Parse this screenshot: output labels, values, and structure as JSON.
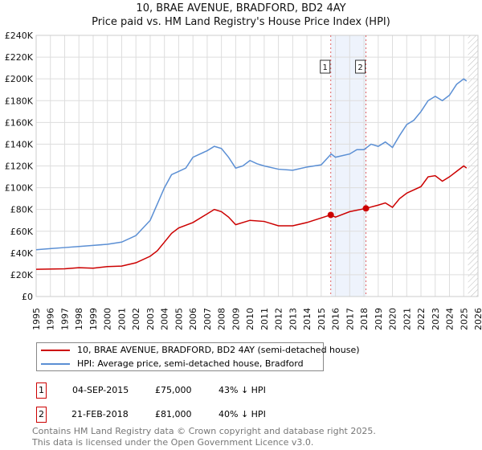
{
  "chart_data": {
    "type": "line",
    "title": "10, BRAE AVENUE, BRADFORD, BD2 4AY",
    "subtitle": "Price paid vs. HM Land Registry's House Price Index (HPI)",
    "xlim": [
      1995,
      2026
    ],
    "ylim": [
      0,
      240000
    ],
    "x_ticks": [
      "1995",
      "1996",
      "1997",
      "1998",
      "1999",
      "2000",
      "2001",
      "2002",
      "2003",
      "2004",
      "2005",
      "2006",
      "2007",
      "2008",
      "2009",
      "2010",
      "2011",
      "2012",
      "2013",
      "2014",
      "2015",
      "2016",
      "2017",
      "2018",
      "2019",
      "2020",
      "2021",
      "2022",
      "2023",
      "2024",
      "2025",
      "2026"
    ],
    "y_ticks": [
      {
        "v": 0,
        "l": "£0"
      },
      {
        "v": 20000,
        "l": "£20K"
      },
      {
        "v": 40000,
        "l": "£40K"
      },
      {
        "v": 60000,
        "l": "£60K"
      },
      {
        "v": 80000,
        "l": "£80K"
      },
      {
        "v": 100000,
        "l": "£100K"
      },
      {
        "v": 120000,
        "l": "£120K"
      },
      {
        "v": 140000,
        "l": "£140K"
      },
      {
        "v": 160000,
        "l": "£160K"
      },
      {
        "v": 180000,
        "l": "£180K"
      },
      {
        "v": 200000,
        "l": "£200K"
      },
      {
        "v": 220000,
        "l": "£220K"
      },
      {
        "v": 240000,
        "l": "£240K"
      }
    ],
    "grid": true,
    "series": [
      {
        "name": "10, BRAE AVENUE, BRADFORD, BD2 4AY (semi-detached house)",
        "color": "#cc0000",
        "points": [
          [
            1995,
            25000
          ],
          [
            1997,
            25500
          ],
          [
            1998,
            26500
          ],
          [
            1999,
            26000
          ],
          [
            2000,
            27500
          ],
          [
            2001,
            28000
          ],
          [
            2002,
            31000
          ],
          [
            2003,
            37000
          ],
          [
            2003.5,
            42000
          ],
          [
            2004,
            50000
          ],
          [
            2004.5,
            58000
          ],
          [
            2005,
            63000
          ],
          [
            2006,
            68000
          ],
          [
            2007,
            76000
          ],
          [
            2007.5,
            80000
          ],
          [
            2008,
            78000
          ],
          [
            2008.5,
            73000
          ],
          [
            2009,
            66000
          ],
          [
            2010,
            70000
          ],
          [
            2011,
            69000
          ],
          [
            2012,
            65000
          ],
          [
            2013,
            65000
          ],
          [
            2014,
            68000
          ],
          [
            2015.67,
            75000
          ],
          [
            2016,
            73000
          ],
          [
            2017,
            78000
          ],
          [
            2018.14,
            81000
          ],
          [
            2019,
            84000
          ],
          [
            2019.5,
            86000
          ],
          [
            2020,
            82000
          ],
          [
            2020.5,
            90000
          ],
          [
            2021,
            95000
          ],
          [
            2022,
            101000
          ],
          [
            2022.5,
            110000
          ],
          [
            2023,
            111000
          ],
          [
            2023.5,
            106000
          ],
          [
            2024,
            110000
          ],
          [
            2024.5,
            115000
          ],
          [
            2025,
            120000
          ],
          [
            2025.2,
            118000
          ]
        ]
      },
      {
        "name": "HPI: Average price, semi-detached house, Bradford",
        "color": "#5b8fd4",
        "points": [
          [
            1995,
            43000
          ],
          [
            1996,
            44000
          ],
          [
            1997,
            45000
          ],
          [
            1998,
            46000
          ],
          [
            1999,
            47000
          ],
          [
            2000,
            48000
          ],
          [
            2001,
            50000
          ],
          [
            2002,
            56000
          ],
          [
            2003,
            70000
          ],
          [
            2003.5,
            85000
          ],
          [
            2004,
            100000
          ],
          [
            2004.5,
            112000
          ],
          [
            2005,
            115000
          ],
          [
            2005.5,
            118000
          ],
          [
            2006,
            128000
          ],
          [
            2007,
            134000
          ],
          [
            2007.5,
            138000
          ],
          [
            2008,
            136000
          ],
          [
            2008.5,
            128000
          ],
          [
            2009,
            118000
          ],
          [
            2009.5,
            120000
          ],
          [
            2010,
            125000
          ],
          [
            2010.5,
            122000
          ],
          [
            2011,
            120000
          ],
          [
            2012,
            117000
          ],
          [
            2013,
            116000
          ],
          [
            2014,
            119000
          ],
          [
            2015,
            121000
          ],
          [
            2015.7,
            131000
          ],
          [
            2016,
            128000
          ],
          [
            2017,
            131000
          ],
          [
            2017.5,
            135000
          ],
          [
            2018,
            135000
          ],
          [
            2018.5,
            140000
          ],
          [
            2019,
            138000
          ],
          [
            2019.5,
            142000
          ],
          [
            2020,
            137000
          ],
          [
            2020.5,
            148000
          ],
          [
            2021,
            158000
          ],
          [
            2021.5,
            162000
          ],
          [
            2022,
            170000
          ],
          [
            2022.5,
            180000
          ],
          [
            2023,
            184000
          ],
          [
            2023.5,
            180000
          ],
          [
            2024,
            185000
          ],
          [
            2024.5,
            195000
          ],
          [
            2025,
            200000
          ],
          [
            2025.2,
            198000
          ]
        ]
      }
    ],
    "sales": [
      {
        "label": "1",
        "x": 2015.67,
        "y": 75000
      },
      {
        "label": "2",
        "x": 2018.14,
        "y": 81000
      }
    ],
    "legend_placement": "below"
  },
  "table": [
    {
      "n": "1",
      "date": "04-SEP-2015",
      "price": "£75,000",
      "hpi": "43% ↓ HPI"
    },
    {
      "n": "2",
      "date": "21-FEB-2018",
      "price": "£81,000",
      "hpi": "40% ↓ HPI"
    }
  ],
  "footer": [
    "Contains HM Land Registry data © Crown copyright and database right 2025.",
    "This data is licensed under the Open Government Licence v3.0."
  ]
}
